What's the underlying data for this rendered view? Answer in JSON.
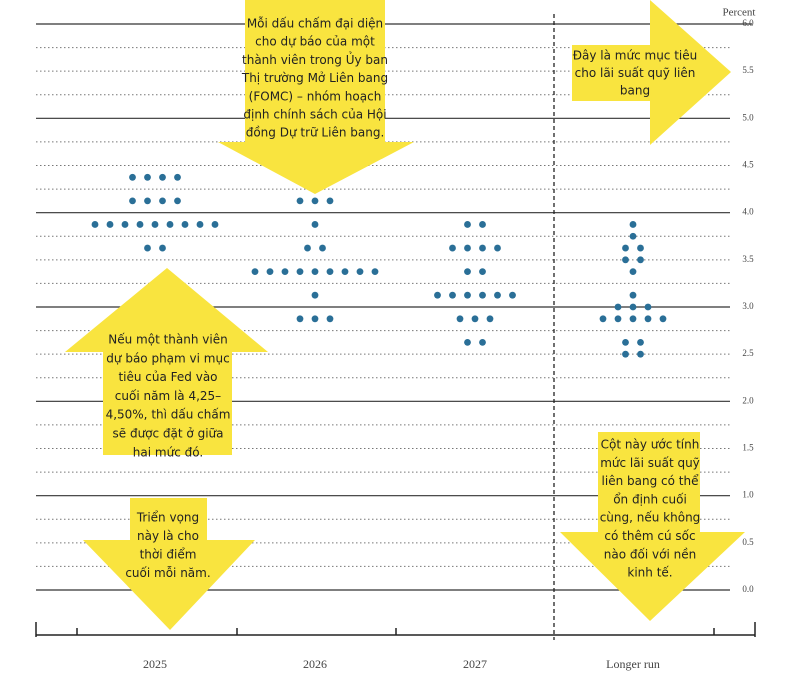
{
  "chart_data": {
    "type": "dot",
    "y_label": "Percent",
    "categories": [
      "2025",
      "2026",
      "2027",
      "Longer run"
    ],
    "values": [
      [
        4.375,
        4.375,
        4.375,
        4.375,
        4.125,
        4.125,
        4.125,
        4.125,
        3.875,
        3.875,
        3.875,
        3.875,
        3.875,
        3.875,
        3.875,
        3.875,
        3.875,
        3.625,
        3.625
      ],
      [
        4.125,
        4.125,
        4.125,
        3.875,
        3.625,
        3.625,
        3.375,
        3.375,
        3.375,
        3.375,
        3.375,
        3.375,
        3.375,
        3.375,
        3.375,
        3.125,
        2.875,
        2.875,
        2.875
      ],
      [
        3.875,
        3.875,
        3.625,
        3.625,
        3.625,
        3.625,
        3.375,
        3.375,
        3.125,
        3.125,
        3.125,
        3.125,
        3.125,
        3.125,
        2.875,
        2.875,
        2.875,
        2.625,
        2.625
      ],
      [
        3.875,
        3.75,
        3.625,
        3.625,
        3.5,
        3.5,
        3.375,
        3.125,
        3.0,
        3.0,
        3.0,
        2.875,
        2.875,
        2.875,
        2.875,
        2.875,
        2.625,
        2.625,
        2.5,
        2.5
      ]
    ],
    "color": "#2a6f97",
    "ylim": [
      0,
      6
    ],
    "yticks": [
      {
        "value": 0,
        "label": "0.0"
      },
      {
        "value": 0.5,
        "label": "0.5"
      },
      {
        "value": 1,
        "label": "1.0"
      },
      {
        "value": 1.5,
        "label": "1.5"
      },
      {
        "value": 2,
        "label": "2.0"
      },
      {
        "value": 2.5,
        "label": "2.5"
      },
      {
        "value": 3,
        "label": "3.0"
      },
      {
        "value": 3.5,
        "label": "3.5"
      },
      {
        "value": 4,
        "label": "4.0"
      },
      {
        "value": 4.5,
        "label": "4.5"
      },
      {
        "value": 5,
        "label": "5.0"
      },
      {
        "value": 5.5,
        "label": "5.5"
      },
      {
        "value": 6,
        "label": "6.0"
      }
    ],
    "minor_yticks": [
      0.25,
      0.75,
      1.25,
      1.75,
      2.25,
      2.75,
      3.25,
      3.75,
      4.25,
      4.75,
      5.25,
      5.75
    ],
    "grid": true,
    "annotations": [
      {
        "lines": [
          "Mỗi dấu chấm đại diện",
          "cho dự báo của một",
          "thành viên trong Ủy ban",
          "Thị trường Mở Liên bang",
          "(FOMC) – nhóm hoạch",
          "định chính sách của Hội",
          "đồng Dự trữ Liên bang."
        ]
      },
      {
        "lines": [
          "Đây là mức mục tiêu",
          "cho lãi suất quỹ liên",
          "bang"
        ]
      },
      {
        "lines": [
          "Nếu một thành viên",
          "dự báo phạm vi mục",
          "tiêu của Fed vào",
          "cuối năm là 4,25–",
          "4,50%, thì dấu chấm",
          "sẽ được đặt ở giữa",
          "hai mức đó."
        ]
      },
      {
        "lines": [
          "Triển vọng",
          "này là cho",
          "thời điểm",
          "cuối mỗi năm."
        ]
      },
      {
        "lines": [
          "Cột này ước tính",
          "mức lãi suất quỹ",
          "liên bang có thể",
          "ổn định cuối",
          "cùng, nếu không",
          "có thêm cú sốc",
          "nào đối với nền",
          "kinh tế."
        ]
      }
    ]
  }
}
